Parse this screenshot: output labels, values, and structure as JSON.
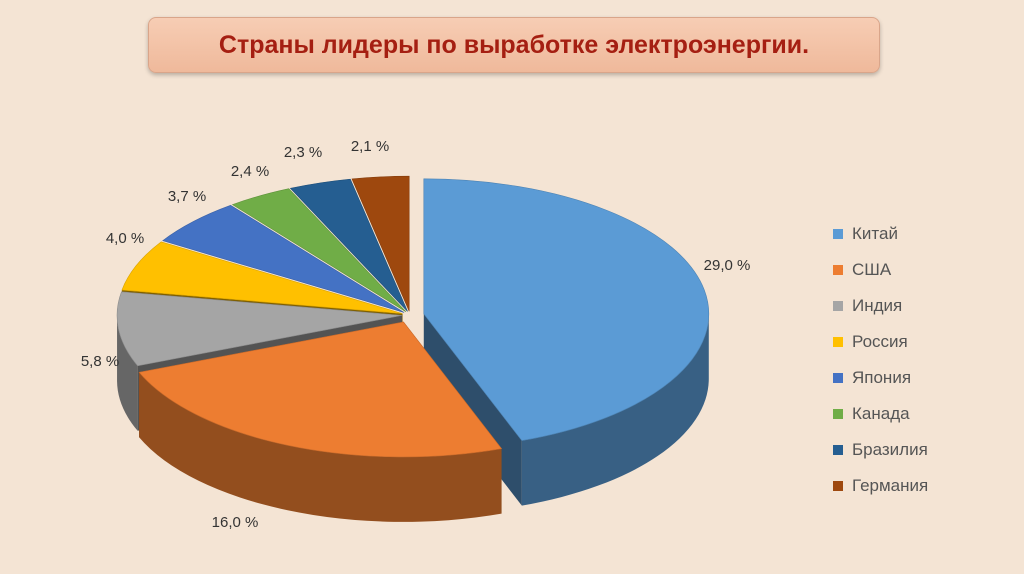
{
  "title": "Страны лидеры по выработке электроэнергии.",
  "chart_data": {
    "type": "pie",
    "title": "Страны лидеры по выработке электроэнергии.",
    "legend_position": "right",
    "slices": [
      {
        "name": "Китай",
        "value": 29.0,
        "label": "29,0 %",
        "color": "#5b9bd5"
      },
      {
        "name": "США",
        "value": 16.0,
        "label": "16,0 %",
        "color": "#ed7d31"
      },
      {
        "name": "Индия",
        "value": 5.8,
        "label": "5,8 %",
        "color": "#a5a5a5"
      },
      {
        "name": "Россия",
        "value": 4.0,
        "label": "4,0 %",
        "color": "#ffc000"
      },
      {
        "name": "Япония",
        "value": 3.7,
        "label": "3,7 %",
        "color": "#4472c4"
      },
      {
        "name": "Канада",
        "value": 2.4,
        "label": "2,4 %",
        "color": "#70ad47"
      },
      {
        "name": "Бразилия",
        "value": 2.3,
        "label": "2,3 %",
        "color": "#255e91"
      },
      {
        "name": "Германия",
        "value": 2.1,
        "label": "2,1 %",
        "color": "#9e480e"
      }
    ]
  }
}
